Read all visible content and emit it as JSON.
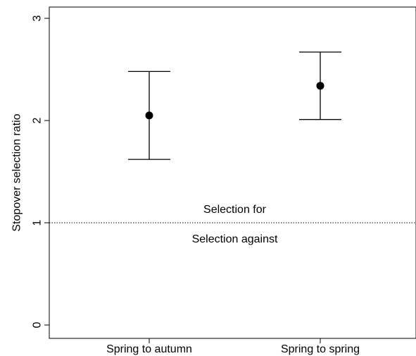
{
  "chart_data": {
    "type": "scatter",
    "title": "",
    "xlabel": "",
    "ylabel": "Stopover selection ratio",
    "categories": [
      "Spring to autumn",
      "Spring to spring"
    ],
    "series": [
      {
        "values": [
          2.05,
          2.34
        ],
        "error_lower": [
          1.62,
          2.01
        ],
        "error_upper": [
          2.48,
          2.67
        ]
      }
    ],
    "ylim": [
      0,
      3
    ],
    "yticks": [
      "0",
      "1",
      "2",
      "3"
    ],
    "reference_line": {
      "y": 1,
      "style": "dotted"
    },
    "annotations": {
      "above": "Selection for",
      "below": "Selection against"
    },
    "grid": false,
    "legend": "none"
  }
}
